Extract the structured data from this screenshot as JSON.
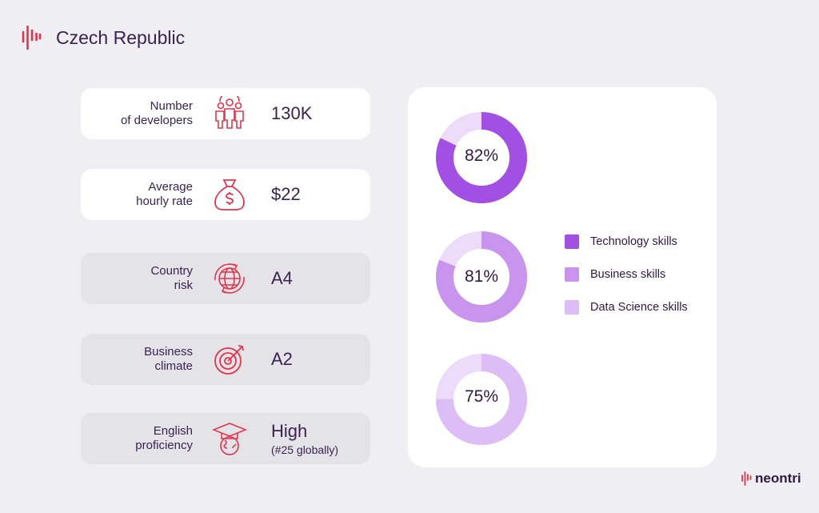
{
  "header": {
    "title": "Czech Republic",
    "logo_icon": "soundwave-logo-icon"
  },
  "stats": [
    {
      "label": "Number\nof developers",
      "value": "130K",
      "sub": "",
      "icon": "people-group-icon"
    },
    {
      "label": "Average\nhourly rate",
      "value": "$22",
      "sub": "",
      "icon": "money-bag-icon"
    },
    {
      "label": "Country\nrisk",
      "value": "A4",
      "sub": "",
      "icon": "globe-arrows-icon"
    },
    {
      "label": "Business\nclimate",
      "value": "A2",
      "sub": "",
      "icon": "target-icon"
    },
    {
      "label": "English\nproficiency",
      "value": "High",
      "sub": "(#25 globally)",
      "icon": "graduation-globe-icon"
    }
  ],
  "chart_data": {
    "type": "pie",
    "series": [
      {
        "name": "Technology skills",
        "value": 82,
        "label": "82%",
        "color": "#a24fe3"
      },
      {
        "name": "Business skills",
        "value": 81,
        "label": "81%",
        "color": "#c994ee"
      },
      {
        "name": "Data Science skills",
        "value": 75,
        "label": "75%",
        "color": "#ddbdf5"
      }
    ],
    "remainder_color": "#ecdcfa",
    "legend_position": "right"
  },
  "brand": {
    "name": "neontri"
  },
  "colors": {
    "accent": "#e5334a",
    "background": "#efeef2"
  }
}
